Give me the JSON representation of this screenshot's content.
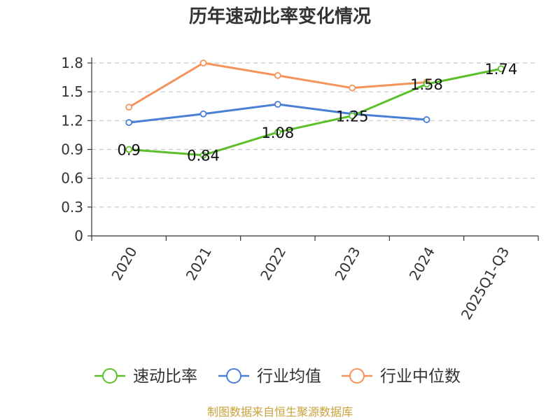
{
  "chart_data": {
    "type": "line",
    "title": "历年速动比率变化情况",
    "categories": [
      "2020",
      "2021",
      "2022",
      "2023",
      "2024",
      "2025Q1-Q3"
    ],
    "ylim": [
      0,
      1.8
    ],
    "yticks": [
      "0",
      "0.3",
      "0.6",
      "0.9",
      "1.2",
      "1.5",
      "1.8"
    ],
    "grid": true,
    "legend_position": "bottom",
    "series": [
      {
        "name": "速动比率",
        "color": "#5cbf2a",
        "values": [
          0.9,
          0.84,
          1.08,
          1.25,
          1.58,
          1.74
        ],
        "data_labels": [
          "0.9",
          "0.84",
          "1.08",
          "1.25",
          "1.58",
          "1.74"
        ]
      },
      {
        "name": "行业均值",
        "color": "#4a7fd6",
        "values": [
          1.18,
          1.27,
          1.37,
          1.27,
          1.21,
          null
        ]
      },
      {
        "name": "行业中位数",
        "color": "#f4935a",
        "values": [
          1.34,
          1.8,
          1.67,
          1.54,
          1.6,
          null
        ]
      }
    ],
    "source": "制图数据来自恒生聚源数据库"
  }
}
